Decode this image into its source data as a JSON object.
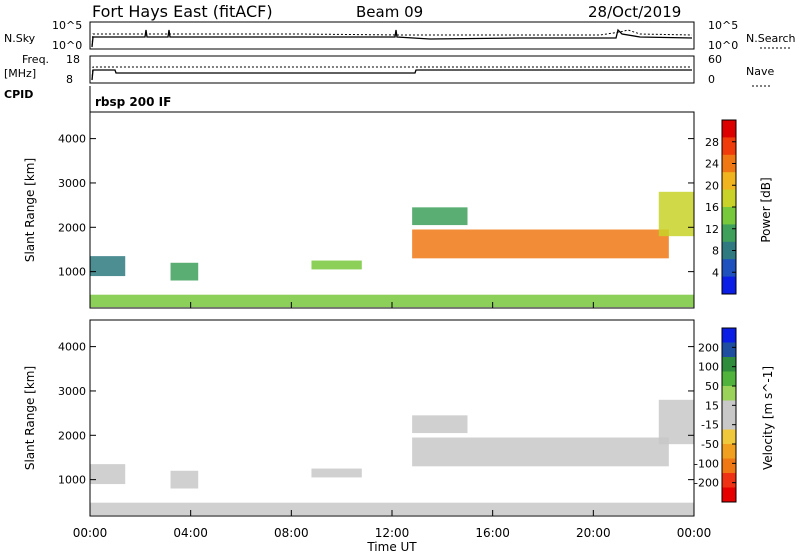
{
  "header": {
    "station": "Fort Hays East (fitACF)",
    "beam": "Beam 09",
    "date": "28/Oct/2019"
  },
  "noise_panel": {
    "left_label": "N.Sky",
    "right_label": "N.Search",
    "left_ticks": [
      "10^5",
      "10^0"
    ],
    "right_ticks": [
      "10^5",
      "10^0"
    ]
  },
  "freq_panel": {
    "left_label_1": "Freq.",
    "left_label_2": "[MHz]",
    "left_ticks": [
      "18",
      "8"
    ],
    "right_label": "Nave",
    "right_ticks": [
      "60",
      "0"
    ]
  },
  "cpid": {
    "label": "CPID",
    "value": "rbsp 200 IF"
  },
  "x_axis": {
    "label": "Time UT",
    "ticks": [
      "00:00",
      "04:00",
      "08:00",
      "12:00",
      "16:00",
      "20:00",
      "00:00"
    ]
  },
  "colors": {
    "power_scale": [
      "#0a1ee6",
      "#1e50be",
      "#2e7a80",
      "#3ea05a",
      "#78c83c",
      "#c8d228",
      "#f0b41e",
      "#f07814",
      "#f03c0a",
      "#dc0000"
    ],
    "velocity_scale": [
      "#e60000",
      "#f03214",
      "#f07814",
      "#f0a01e",
      "#f0c83c",
      "#c8c8c8",
      "#c8c8c8",
      "#9ad25a",
      "#50b43c",
      "#2e8c3c",
      "#1e4ea0",
      "#0a1ee6"
    ]
  },
  "chart_data": [
    {
      "type": "heatmap",
      "title": "Power",
      "ylabel": "Slant Range [km]",
      "xlabel": "",
      "y_ticks": [
        "1000",
        "2000",
        "3000",
        "4000"
      ],
      "ylim": [
        180,
        4600
      ],
      "colorbar_label": "Power [dB]",
      "colorbar_ticks": [
        "4",
        "8",
        "12",
        "16",
        "20",
        "24",
        "28"
      ],
      "colorbar_range": [
        0,
        30
      ],
      "regions": [
        {
          "t_start": 0.0,
          "t_end": 1.4,
          "r_low": 900,
          "r_high": 1350,
          "value": 8
        },
        {
          "t_start": 3.2,
          "t_end": 4.3,
          "r_low": 800,
          "r_high": 1200,
          "value": 10
        },
        {
          "t_start": 8.8,
          "t_end": 10.8,
          "r_low": 1050,
          "r_high": 1250,
          "value": 12
        },
        {
          "t_start": 12.8,
          "t_end": 15.0,
          "r_low": 2050,
          "r_high": 2450,
          "value": 10
        },
        {
          "t_start": 12.8,
          "t_end": 23.0,
          "r_low": 1300,
          "r_high": 1950,
          "value": 22
        },
        {
          "t_start": 22.6,
          "t_end": 24.0,
          "r_low": 1800,
          "r_high": 2800,
          "value": 16
        },
        {
          "t_start": 0.0,
          "t_end": 24.0,
          "r_low": 200,
          "r_high": 480,
          "value": 12
        }
      ]
    },
    {
      "type": "heatmap",
      "title": "Velocity",
      "ylabel": "Slant Range [km]",
      "xlabel": "Time UT",
      "y_ticks": [
        "1000",
        "2000",
        "3000",
        "4000"
      ],
      "ylim": [
        180,
        4600
      ],
      "colorbar_label": "Velocity [m s^-1]",
      "colorbar_ticks": [
        "200",
        "100",
        "50",
        "15",
        "-15",
        "-50",
        "-100",
        "-200"
      ],
      "colorbar_range": [
        -250,
        250
      ],
      "regions": [
        {
          "t_start": 0.0,
          "t_end": 1.4,
          "r_low": 900,
          "r_high": 1350,
          "value": 40
        },
        {
          "t_start": 3.2,
          "t_end": 4.3,
          "r_low": 800,
          "r_high": 1200,
          "value": 0
        },
        {
          "t_start": 8.8,
          "t_end": 10.8,
          "r_low": 1050,
          "r_high": 1250,
          "value": 20
        },
        {
          "t_start": 12.8,
          "t_end": 15.0,
          "r_low": 2050,
          "r_high": 2450,
          "value": 0
        },
        {
          "t_start": 12.8,
          "t_end": 23.0,
          "r_low": 1300,
          "r_high": 1950,
          "value": 0
        },
        {
          "t_start": 22.6,
          "t_end": 24.0,
          "r_low": 1800,
          "r_high": 2800,
          "value": 40
        },
        {
          "t_start": 0.0,
          "t_end": 24.0,
          "r_low": 200,
          "r_high": 480,
          "value": -40
        }
      ]
    }
  ]
}
